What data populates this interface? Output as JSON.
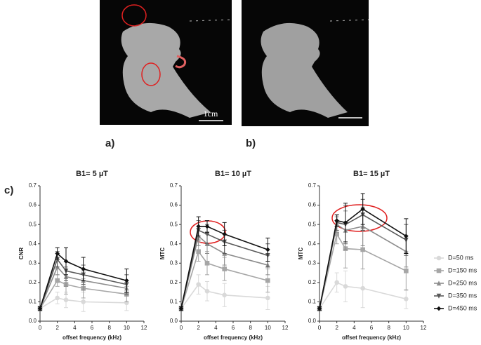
{
  "figure": {
    "panels": [
      "a)",
      "b)",
      "c)"
    ],
    "scale_bar": "1cm"
  },
  "chart_data": [
    {
      "type": "line",
      "title": "B1= 5 µT",
      "ylabel": "CNR",
      "xlabel": "offset frequency (kHz)",
      "xlim": [
        0,
        12
      ],
      "xticks": [
        0,
        2,
        4,
        6,
        8,
        10,
        12
      ],
      "ylim": [
        0,
        0.7
      ],
      "yticks": [
        {
          "value": 0,
          "label": "0.0"
        },
        0.1,
        0.2,
        0.3,
        0.4,
        0.5,
        0.6,
        0.7
      ],
      "x": [
        0,
        2,
        3,
        5,
        10
      ],
      "series": [
        {
          "name": "D=50 ms",
          "color": "#d9d9d9",
          "marker": "circle",
          "values": [
            0.065,
            0.12,
            0.11,
            0.1,
            0.095
          ],
          "errors": [
            0.01,
            0.03,
            0.04,
            0.05,
            0.04
          ]
        },
        {
          "name": "D=150 ms",
          "color": "#a6a6a6",
          "marker": "square",
          "values": [
            0.065,
            0.21,
            0.19,
            0.17,
            0.14
          ],
          "errors": [
            0.01,
            0.03,
            0.05,
            0.05,
            0.04
          ]
        },
        {
          "name": "D=250 ms",
          "color": "#8c8c8c",
          "marker": "triangle-up",
          "values": [
            0.065,
            0.28,
            0.23,
            0.21,
            0.17
          ],
          "errors": [
            0.01,
            0.04,
            0.05,
            0.05,
            0.04
          ]
        },
        {
          "name": "D=350 ms",
          "color": "#595959",
          "marker": "triangle-down",
          "values": [
            0.065,
            0.32,
            0.26,
            0.24,
            0.19
          ],
          "errors": [
            0.01,
            0.04,
            0.05,
            0.05,
            0.05
          ]
        },
        {
          "name": "D=450 ms",
          "color": "#111111",
          "marker": "diamond",
          "values": [
            0.065,
            0.35,
            0.31,
            0.27,
            0.21
          ],
          "errors": [
            0.01,
            0.03,
            0.07,
            0.06,
            0.06
          ]
        }
      ]
    },
    {
      "type": "line",
      "title": "B1= 10 µT",
      "ylabel": "MTC",
      "xlabel": "offset frequency (kHz)",
      "xlim": [
        0,
        12
      ],
      "xticks": [
        0,
        2,
        4,
        6,
        8,
        10,
        12
      ],
      "ylim": [
        0,
        0.7
      ],
      "yticks": [
        {
          "value": 0,
          "label": "0.0"
        },
        0.1,
        0.2,
        0.3,
        0.4,
        0.5,
        0.6,
        0.7
      ],
      "x": [
        0,
        2,
        3,
        5,
        10
      ],
      "series": [
        {
          "name": "D=50 ms",
          "color": "#d9d9d9",
          "marker": "circle",
          "values": [
            0.065,
            0.19,
            0.155,
            0.135,
            0.12
          ],
          "errors": [
            0.01,
            0.05,
            0.05,
            0.06,
            0.06
          ]
        },
        {
          "name": "D=150 ms",
          "color": "#a6a6a6",
          "marker": "square",
          "values": [
            0.065,
            0.36,
            0.3,
            0.27,
            0.21
          ],
          "errors": [
            0.01,
            0.05,
            0.06,
            0.06,
            0.06
          ]
        },
        {
          "name": "D=250 ms",
          "color": "#8c8c8c",
          "marker": "triangle-up",
          "values": [
            0.065,
            0.44,
            0.4,
            0.35,
            0.29
          ],
          "errors": [
            0.01,
            0.05,
            0.05,
            0.06,
            0.05
          ]
        },
        {
          "name": "D=350 ms",
          "color": "#595959",
          "marker": "triangle-down",
          "values": [
            0.065,
            0.47,
            0.45,
            0.41,
            0.34
          ],
          "errors": [
            0.01,
            0.05,
            0.05,
            0.06,
            0.06
          ]
        },
        {
          "name": "D=450 ms",
          "color": "#111111",
          "marker": "diamond",
          "values": [
            0.065,
            0.49,
            0.49,
            0.45,
            0.37
          ],
          "errors": [
            0.01,
            0.05,
            0.03,
            0.06,
            0.06
          ]
        }
      ]
    },
    {
      "type": "line",
      "title": "B1= 15 µT",
      "ylabel": "MTC",
      "xlabel": "offset frequency (kHz)",
      "xlim": [
        0,
        12
      ],
      "xticks": [
        0,
        2,
        4,
        6,
        8,
        10,
        12
      ],
      "ylim": [
        0,
        0.7
      ],
      "yticks": [
        {
          "value": 0,
          "label": "0.0"
        },
        0.1,
        0.2,
        0.3,
        0.4,
        0.5,
        0.6,
        0.7
      ],
      "x": [
        0,
        2,
        3,
        5,
        10
      ],
      "series": [
        {
          "name": "D=50 ms",
          "color": "#d9d9d9",
          "marker": "circle",
          "values": [
            0.065,
            0.2,
            0.18,
            0.17,
            0.115
          ],
          "errors": [
            0.01,
            0.05,
            0.08,
            0.1,
            0.05
          ]
        },
        {
          "name": "D=150 ms",
          "color": "#a6a6a6",
          "marker": "square",
          "values": [
            0.065,
            0.45,
            0.375,
            0.37,
            0.26
          ],
          "errors": [
            0.01,
            0.05,
            0.1,
            0.1,
            0.1
          ]
        },
        {
          "name": "D=250 ms",
          "color": "#8c8c8c",
          "marker": "triangle-up",
          "values": [
            0.065,
            0.5,
            0.47,
            0.49,
            0.36
          ],
          "errors": [
            0.01,
            0.04,
            0.1,
            0.1,
            0.08
          ]
        },
        {
          "name": "D=350 ms",
          "color": "#595959",
          "marker": "triangle-down",
          "values": [
            0.065,
            0.51,
            0.5,
            0.55,
            0.42
          ],
          "errors": [
            0.01,
            0.04,
            0.1,
            0.08,
            0.08
          ]
        },
        {
          "name": "D=450 ms",
          "color": "#111111",
          "marker": "diamond",
          "values": [
            0.065,
            0.52,
            0.51,
            0.58,
            0.44
          ],
          "errors": [
            0.01,
            0.03,
            0.1,
            0.08,
            0.09
          ]
        }
      ]
    }
  ]
}
